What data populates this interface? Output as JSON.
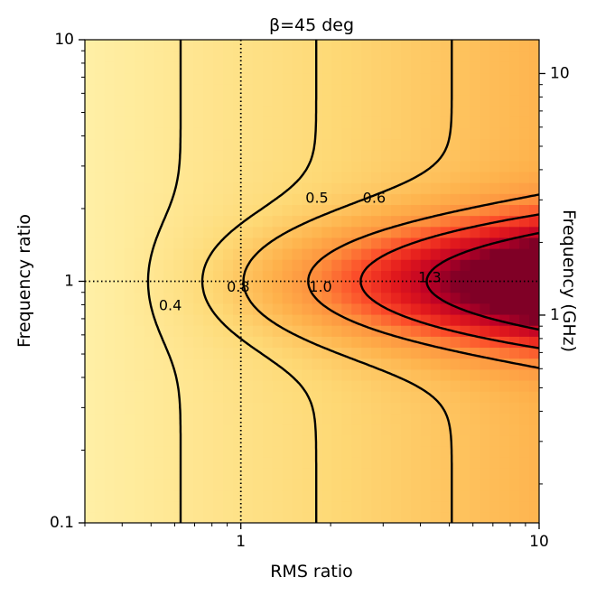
{
  "chart_data": {
    "type": "heatmap",
    "title": "β=45 deg",
    "xlabel": "RMS ratio",
    "ylabel": "Frequency ratio",
    "y2label": "Frequency (GHz)",
    "x_scale": "log",
    "y_scale": "log",
    "xlim": [
      0.3,
      10
    ],
    "ylim": [
      0.1,
      10
    ],
    "x_ticks": [
      {
        "value": 1,
        "label": "1"
      },
      {
        "value": 10,
        "label": "10"
      }
    ],
    "y_ticks": [
      {
        "value": 0.1,
        "label": "0.1"
      },
      {
        "value": 1,
        "label": "1"
      },
      {
        "value": 10,
        "label": "10"
      }
    ],
    "y2_ticks": [
      {
        "value": 1,
        "label": "1"
      },
      {
        "value": 10,
        "label": "10"
      }
    ],
    "colormap": "YlOrRd",
    "reference_lines": [
      {
        "orientation": "vertical",
        "value": 1,
        "style": "dotted"
      },
      {
        "orientation": "horizontal",
        "value": 1,
        "style": "dotted"
      }
    ],
    "contours": [
      {
        "level": 0.4,
        "label": "0.4",
        "style": "dashed",
        "label_at": [
          0.58,
          0.79
        ]
      },
      {
        "level": 0.5,
        "label": "0.5",
        "style": "dashed",
        "label_at": [
          1.8,
          2.2
        ]
      },
      {
        "level": 0.6,
        "label": "0.6",
        "style": "dashed",
        "label_at": [
          2.8,
          2.2
        ]
      },
      {
        "level": 0.8,
        "label": "0.8",
        "style": "dashed",
        "label_at": [
          0.98,
          0.94
        ]
      },
      {
        "level": 1.0,
        "label": "1.0",
        "style": "solid",
        "label_at": [
          1.85,
          0.94
        ]
      },
      {
        "level": 1.3,
        "label": "1.3",
        "style": "dashed",
        "label_at": [
          4.3,
          1.03
        ]
      }
    ]
  }
}
